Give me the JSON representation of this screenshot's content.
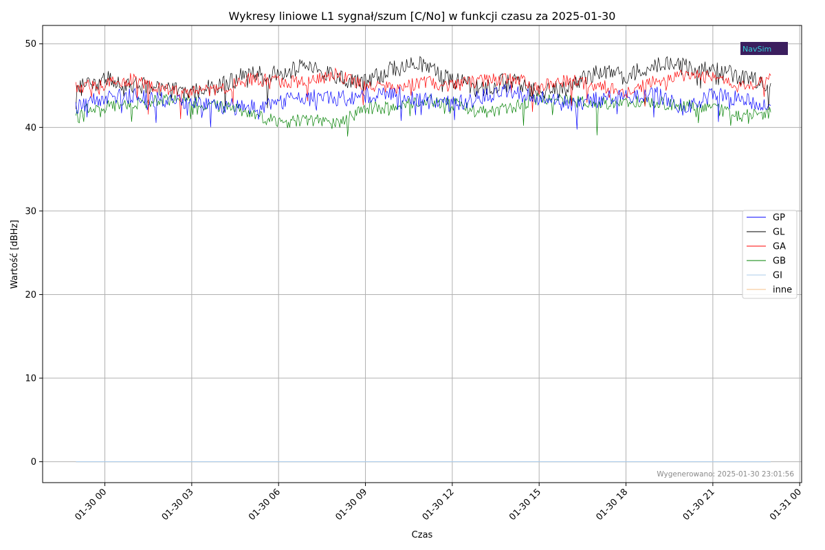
{
  "chart_data": {
    "type": "line",
    "title": "Wykresy liniowe L1 sygnał/szum [C/No] w funkcji czasu za 2025-01-30",
    "xlabel": "Czas",
    "ylabel": "Wartość [dBHz]",
    "xlim": [
      "2025-01-29 21:51",
      "2025-01-31 00:04"
    ],
    "ylim": [
      -2.5,
      52.2
    ],
    "x_ticks": [
      "01-30 00",
      "01-30 03",
      "01-30 06",
      "01-30 09",
      "01-30 12",
      "01-30 15",
      "01-30 18",
      "01-30 21",
      "01-31 00"
    ],
    "y_ticks": [
      "0",
      "10",
      "20",
      "30",
      "40",
      "50"
    ],
    "y_tick_values": [
      0,
      10,
      20,
      30,
      40,
      50
    ],
    "grid": true,
    "legend_position": "center-right",
    "x_start": "2025-01-29 23:00",
    "x_end": "2025-01-30 23:00",
    "step_minutes": 60,
    "series": [
      {
        "name": "GP",
        "color": "#0000ff",
        "values": [
          42.3,
          43.6,
          43.8,
          43.2,
          42.8,
          42.6,
          42.3,
          43.1,
          43.6,
          43.4,
          43.8,
          44.2,
          43.2,
          42.8,
          43.6,
          44.3,
          43.5,
          42.8,
          43.3,
          43.8,
          44.0,
          42.3,
          43.8,
          43.5,
          42.6
        ]
      },
      {
        "name": "GL",
        "color": "#000000",
        "values": [
          44.5,
          45.8,
          45.2,
          44.6,
          44.2,
          45.0,
          46.5,
          46.2,
          47.6,
          45.8,
          45.3,
          47.1,
          47.6,
          45.6,
          44.7,
          45.6,
          44.2,
          44.8,
          46.5,
          46.1,
          47.6,
          47.2,
          47.0,
          46.0,
          45.3
        ]
      },
      {
        "name": "GA",
        "color": "#ff0000",
        "values": [
          44.8,
          45.2,
          45.8,
          44.5,
          44.3,
          44.6,
          45.8,
          45.5,
          45.4,
          46.3,
          45.0,
          44.6,
          45.5,
          45.0,
          45.6,
          45.8,
          45.0,
          45.6,
          45.1,
          44.2,
          45.5,
          46.3,
          46.0,
          44.8,
          46.2
        ]
      },
      {
        "name": "GB",
        "color": "#008000",
        "values": [
          42.0,
          42.5,
          42.9,
          43.3,
          43.1,
          42.4,
          41.8,
          40.6,
          41.0,
          40.3,
          42.4,
          42.3,
          43.2,
          42.8,
          41.8,
          42.3,
          43.6,
          43.2,
          42.7,
          43.2,
          43.0,
          42.6,
          42.4,
          41.3,
          41.8
        ]
      },
      {
        "name": "GI",
        "color": "#aacbea",
        "values": [
          0,
          0,
          0,
          0,
          0,
          0,
          0,
          0,
          0,
          0,
          0,
          0,
          0,
          0,
          0,
          0,
          0,
          0,
          0,
          0,
          0,
          0,
          0,
          0,
          0
        ]
      },
      {
        "name": "inne",
        "color": "#f5c08a",
        "values": [
          0,
          0,
          0,
          0,
          0,
          0,
          0,
          0,
          0,
          0,
          0,
          0,
          0,
          0,
          0,
          0,
          0,
          0,
          0,
          0,
          0,
          0,
          0,
          0,
          0
        ]
      }
    ],
    "annotations": {
      "footnote": "Wygenerowano: 2025-01-30 23:01:56",
      "logo": "NavSim"
    }
  },
  "colors": {
    "grid": "#b0b0b0",
    "axes": "#000000",
    "legend_border": "#cccccc",
    "logo_bg": "#3b1e5e",
    "logo_text": "#35d0d6"
  }
}
